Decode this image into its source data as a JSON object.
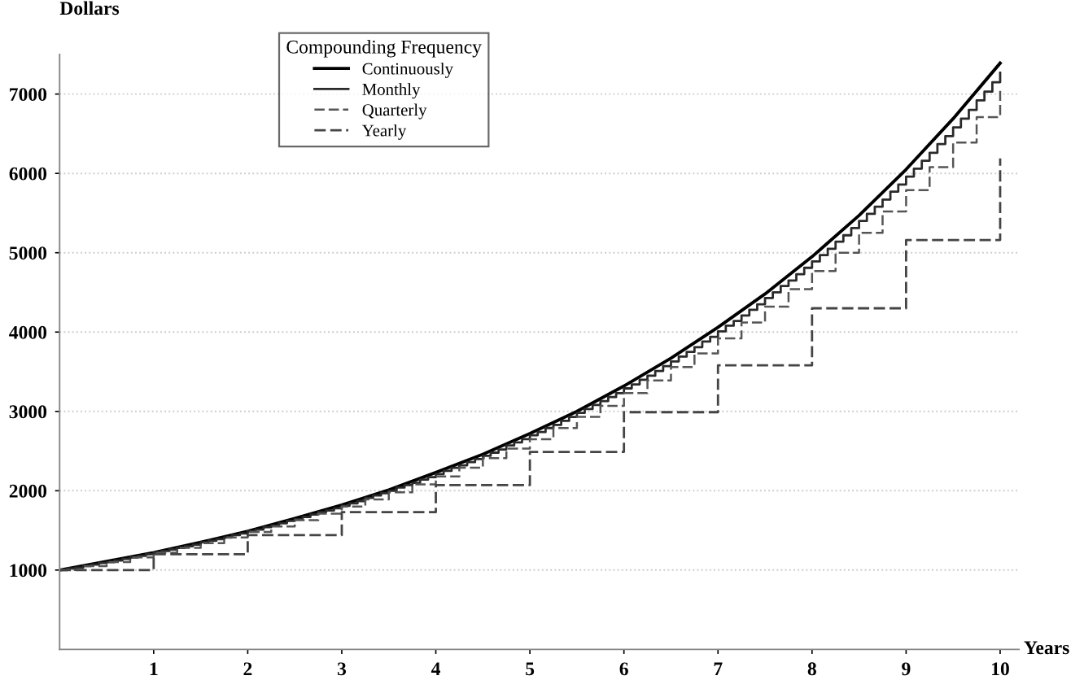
{
  "chart_data": {
    "type": "step",
    "ylabel": "Dollars",
    "xlabel": "Years",
    "legend_title": "Compounding Frequency",
    "xlim": [
      0,
      10.2
    ],
    "xticks": [
      1,
      2,
      3,
      4,
      5,
      6,
      7,
      8,
      9,
      10
    ],
    "ylim": [
      0,
      7500
    ],
    "yticks": [
      1000,
      2000,
      3000,
      4000,
      5000,
      6000,
      7000
    ],
    "grid": "y",
    "legend": "top",
    "marker": "none",
    "series": [
      {
        "name": "Continuously",
        "type": "line",
        "color": "#000000",
        "line_style": "solid",
        "x": [
          0,
          0.5,
          1,
          1.5,
          2,
          2.5,
          3,
          3.5,
          4,
          4.5,
          5,
          5.5,
          6,
          6.5,
          7,
          7.5,
          8,
          8.5,
          9,
          9.5,
          10
        ],
        "values": [
          1000,
          1110,
          1220,
          1350,
          1490,
          1650,
          1820,
          2010,
          2230,
          2460,
          2720,
          3000,
          3320,
          3670,
          4060,
          4480,
          4950,
          5470,
          6050,
          6690,
          7390
        ]
      },
      {
        "name": "Monthly",
        "color": "#2a2a2a",
        "line_style": "solid",
        "x": [
          0,
          0.083,
          0.167,
          0.25,
          0.333,
          0.417,
          0.5,
          0.583,
          0.667,
          0.75,
          0.833,
          0.917,
          1,
          1.083,
          1.167,
          1.25,
          1.333,
          1.417,
          1.5,
          1.583,
          1.667,
          1.75,
          1.833,
          1.917,
          2,
          2.083,
          2.167,
          2.25,
          2.333,
          2.417,
          2.5,
          2.583,
          2.667,
          2.75,
          2.833,
          2.917,
          3,
          3.083,
          3.167,
          3.25,
          3.333,
          3.417,
          3.5,
          3.583,
          3.667,
          3.75,
          3.833,
          3.917,
          4,
          4.083,
          4.167,
          4.25,
          4.333,
          4.417,
          4.5,
          4.583,
          4.667,
          4.75,
          4.833,
          4.917,
          5,
          5.083,
          5.167,
          5.25,
          5.333,
          5.417,
          5.5,
          5.583,
          5.667,
          5.75,
          5.833,
          5.917,
          6,
          6.083,
          6.167,
          6.25,
          6.333,
          6.417,
          6.5,
          6.583,
          6.667,
          6.75,
          6.833,
          6.917,
          7,
          7.083,
          7.167,
          7.25,
          7.333,
          7.417,
          7.5,
          7.583,
          7.667,
          7.75,
          7.833,
          7.917,
          8,
          8.083,
          8.167,
          8.25,
          8.333,
          8.417,
          8.5,
          8.583,
          8.667,
          8.75,
          8.833,
          8.917,
          9,
          9.083,
          9.167,
          9.25,
          9.333,
          9.417,
          9.5,
          9.583,
          9.667,
          9.75,
          9.833,
          9.917,
          10
        ],
        "values": [
          1000,
          1020,
          1030,
          1050,
          1070,
          1090,
          1100,
          1120,
          1140,
          1160,
          1180,
          1200,
          1220,
          1240,
          1260,
          1280,
          1300,
          1320,
          1350,
          1370,
          1390,
          1410,
          1440,
          1460,
          1490,
          1510,
          1540,
          1560,
          1590,
          1620,
          1640,
          1670,
          1700,
          1730,
          1750,
          1780,
          1810,
          1840,
          1870,
          1910,
          1940,
          1970,
          2000,
          2040,
          2070,
          2100,
          2140,
          2170,
          2210,
          2250,
          2290,
          2320,
          2360,
          2400,
          2440,
          2480,
          2520,
          2570,
          2610,
          2650,
          2700,
          2740,
          2790,
          2830,
          2880,
          2930,
          2980,
          3030,
          3080,
          3130,
          3180,
          3230,
          3290,
          3340,
          3400,
          3450,
          3510,
          3570,
          3630,
          3690,
          3750,
          3810,
          3880,
          3940,
          4010,
          4080,
          4140,
          4210,
          4280,
          4350,
          4430,
          4500,
          4580,
          4650,
          4730,
          4810,
          4890,
          4970,
          5050,
          5140,
          5220,
          5310,
          5400,
          5490,
          5580,
          5670,
          5770,
          5860,
          5960,
          6060,
          6160,
          6260,
          6370,
          6470,
          6580,
          6690,
          6800,
          6920,
          7030,
          7150,
          7270
        ]
      },
      {
        "name": "Quarterly",
        "color": "#555555",
        "line_style": "dashed",
        "x": [
          0,
          0.25,
          0.5,
          0.75,
          1,
          1.25,
          1.5,
          1.75,
          2,
          2.25,
          2.5,
          2.75,
          3,
          3.25,
          3.5,
          3.75,
          4,
          4.25,
          4.5,
          4.75,
          5,
          5.25,
          5.5,
          5.75,
          6,
          6.25,
          6.5,
          6.75,
          7,
          7.25,
          7.5,
          7.75,
          8,
          8.25,
          8.5,
          8.75,
          9,
          9.25,
          9.5,
          9.75,
          10
        ],
        "values": [
          1000,
          1050,
          1100,
          1160,
          1220,
          1280,
          1340,
          1410,
          1480,
          1550,
          1630,
          1710,
          1800,
          1890,
          1980,
          2080,
          2180,
          2290,
          2410,
          2530,
          2650,
          2790,
          2930,
          3070,
          3230,
          3390,
          3560,
          3730,
          3920,
          4120,
          4320,
          4540,
          4770,
          5000,
          5250,
          5520,
          5790,
          6080,
          6390,
          6710,
          7040
        ]
      },
      {
        "name": "Yearly",
        "color": "#444444",
        "line_style": "dashed",
        "x": [
          0,
          1,
          2,
          3,
          4,
          5,
          6,
          7,
          8,
          9,
          10
        ],
        "values": [
          1000,
          1200,
          1440,
          1730,
          2070,
          2490,
          2990,
          3580,
          4300,
          5160,
          6190
        ]
      }
    ]
  }
}
